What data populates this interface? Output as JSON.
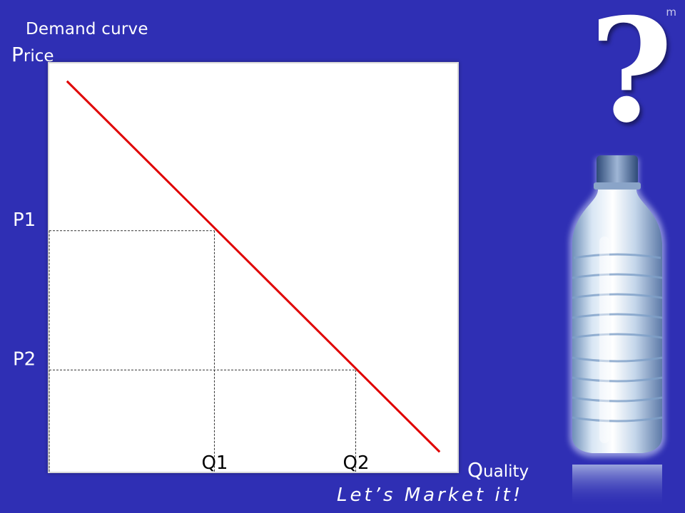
{
  "corner_mark": "m",
  "decorations": {
    "question_mark": "?",
    "image": "water-bottle"
  },
  "tagline": "Let’s Market it!",
  "chart_data": {
    "type": "line",
    "title": "Demand curve",
    "ylabel": {
      "first": "P",
      "rest": "rice"
    },
    "xlabel": {
      "first": "Q",
      "rest": "uality"
    },
    "xlim": [
      0,
      100
    ],
    "ylim": [
      0,
      100
    ],
    "grid": false,
    "series": [
      {
        "x": [
          4.5,
          95.5
        ],
        "y": [
          95.5,
          5
        ],
        "color": "#e00000"
      }
    ],
    "reference_points": [
      {
        "x": 40.5,
        "y": 59,
        "x_label": "Q1",
        "y_label": "P1"
      },
      {
        "x": 75,
        "y": 25,
        "x_label": "Q2",
        "y_label": "P2"
      }
    ]
  }
}
